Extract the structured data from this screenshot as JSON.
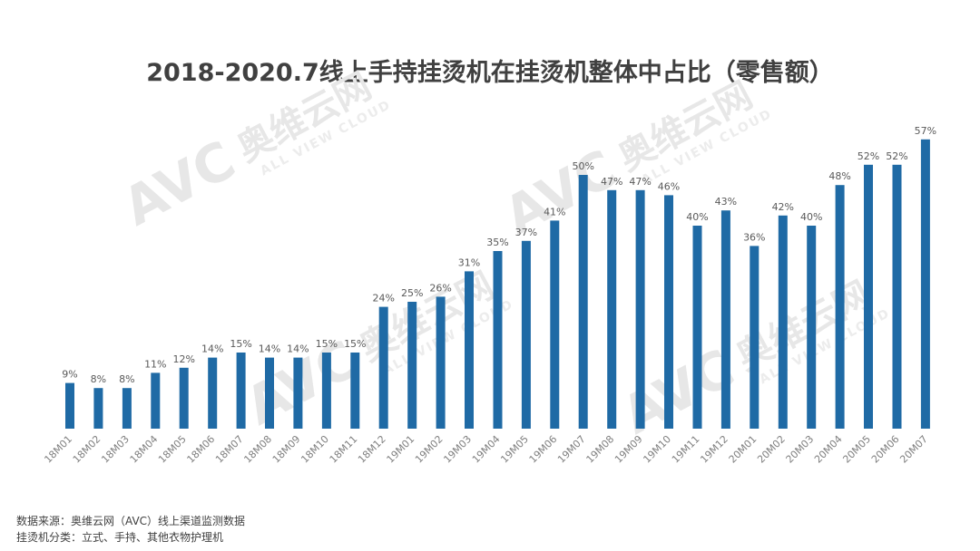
{
  "watermark": {
    "brand": "AVC",
    "name_cn": "奥维云网",
    "name_en": "ALL VIEW CLOUD"
  },
  "footer": {
    "source": "数据来源：奥维云网（AVC）线上渠道监测数据",
    "note": "挂烫机分类：立式、手持、其他衣物护理机"
  },
  "chart_data": {
    "type": "bar",
    "title": "2018-2020.7线上手持挂烫机在挂烫机整体中占比（零售额）",
    "xlabel": "",
    "ylabel": "",
    "unit": "%",
    "ylim": [
      0,
      60
    ],
    "grid": false,
    "legend": "none",
    "bar_color": "#1f6aa5",
    "categories": [
      "18M01",
      "18M02",
      "18M03",
      "18M04",
      "18M05",
      "18M06",
      "18M07",
      "18M08",
      "18M09",
      "18M10",
      "18M11",
      "18M12",
      "19M01",
      "19M02",
      "19M03",
      "19M04",
      "19M05",
      "19M06",
      "19M07",
      "19M08",
      "19M09",
      "19M10",
      "19M11",
      "19M12",
      "20M01",
      "20M02",
      "20M03",
      "20M04",
      "20M05",
      "20M06",
      "20M07"
    ],
    "values": [
      9,
      8,
      8,
      11,
      12,
      14,
      15,
      14,
      14,
      15,
      15,
      24,
      25,
      26,
      31,
      35,
      37,
      41,
      50,
      47,
      47,
      46,
      40,
      43,
      36,
      42,
      40,
      48,
      52,
      52,
      57
    ],
    "labels": [
      "9%",
      "8%",
      "8%",
      "11%",
      "12%",
      "14%",
      "15%",
      "14%",
      "14%",
      "15%",
      "15%",
      "24%",
      "25%",
      "26%",
      "31%",
      "35%",
      "37%",
      "41%",
      "50%",
      "47%",
      "47%",
      "46%",
      "40%",
      "43%",
      "36%",
      "42%",
      "40%",
      "48%",
      "52%",
      "52%",
      "57%"
    ]
  }
}
